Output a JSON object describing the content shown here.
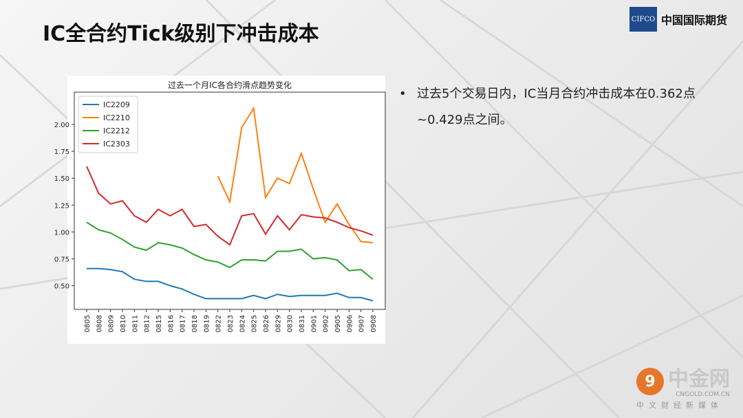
{
  "slide": {
    "title": "IC全合约Tick级别下冲击成本",
    "bullet": "过去5个交易日内，IC当月合约冲击成本在0.362点~0.429点之间。"
  },
  "logo": {
    "mark": "CIFCO",
    "name": "中国国际期货"
  },
  "watermark": {
    "mark": "9",
    "name": "中金网",
    "url": "CNGOLD.COM.CN",
    "sub": "中文财经新媒体"
  },
  "chart_data": {
    "type": "line",
    "title": "过去一个月IC各合约滑点趋势变化",
    "xlabel": "",
    "ylabel": "",
    "categories": [
      "0805",
      "0808",
      "0809",
      "0810",
      "0811",
      "0812",
      "0815",
      "0816",
      "0817",
      "0818",
      "0819",
      "0822",
      "0823",
      "0824",
      "0825",
      "0826",
      "0829",
      "0830",
      "0831",
      "0901",
      "0902",
      "0905",
      "0906",
      "0907",
      "0908"
    ],
    "yticks": [
      "0.50",
      "0.75",
      "1.00",
      "1.25",
      "1.50",
      "1.75",
      "2.00"
    ],
    "ylim": [
      0.28,
      2.3
    ],
    "grid": false,
    "legend": "top-left",
    "series": [
      {
        "name": "IC2209",
        "color": "#1f77b4",
        "values": [
          0.66,
          0.66,
          0.65,
          0.63,
          0.56,
          0.54,
          0.54,
          0.5,
          0.47,
          0.42,
          0.38,
          0.38,
          0.38,
          0.38,
          0.41,
          0.38,
          0.42,
          0.4,
          0.41,
          0.41,
          0.41,
          0.43,
          0.39,
          0.39,
          0.36
        ]
      },
      {
        "name": "IC2210",
        "color": "#ff7f0e",
        "values": [
          null,
          null,
          null,
          null,
          null,
          null,
          null,
          null,
          null,
          null,
          null,
          1.52,
          1.28,
          1.97,
          2.15,
          1.32,
          1.5,
          1.45,
          1.73,
          1.4,
          1.09,
          1.26,
          1.07,
          0.91,
          0.9
        ]
      },
      {
        "name": "IC2212",
        "color": "#2ca02c",
        "values": [
          1.09,
          1.02,
          0.99,
          0.93,
          0.86,
          0.83,
          0.9,
          0.88,
          0.85,
          0.79,
          0.74,
          0.72,
          0.67,
          0.74,
          0.74,
          0.73,
          0.82,
          0.82,
          0.84,
          0.75,
          0.76,
          0.74,
          0.64,
          0.65,
          0.56
        ]
      },
      {
        "name": "IC2303",
        "color": "#d62728",
        "values": [
          1.61,
          1.36,
          1.26,
          1.29,
          1.15,
          1.09,
          1.21,
          1.15,
          1.21,
          1.05,
          1.07,
          0.96,
          0.88,
          1.15,
          1.17,
          0.98,
          1.15,
          1.02,
          1.16,
          1.14,
          1.13,
          1.09,
          1.04,
          1.01,
          0.97
        ]
      }
    ]
  }
}
